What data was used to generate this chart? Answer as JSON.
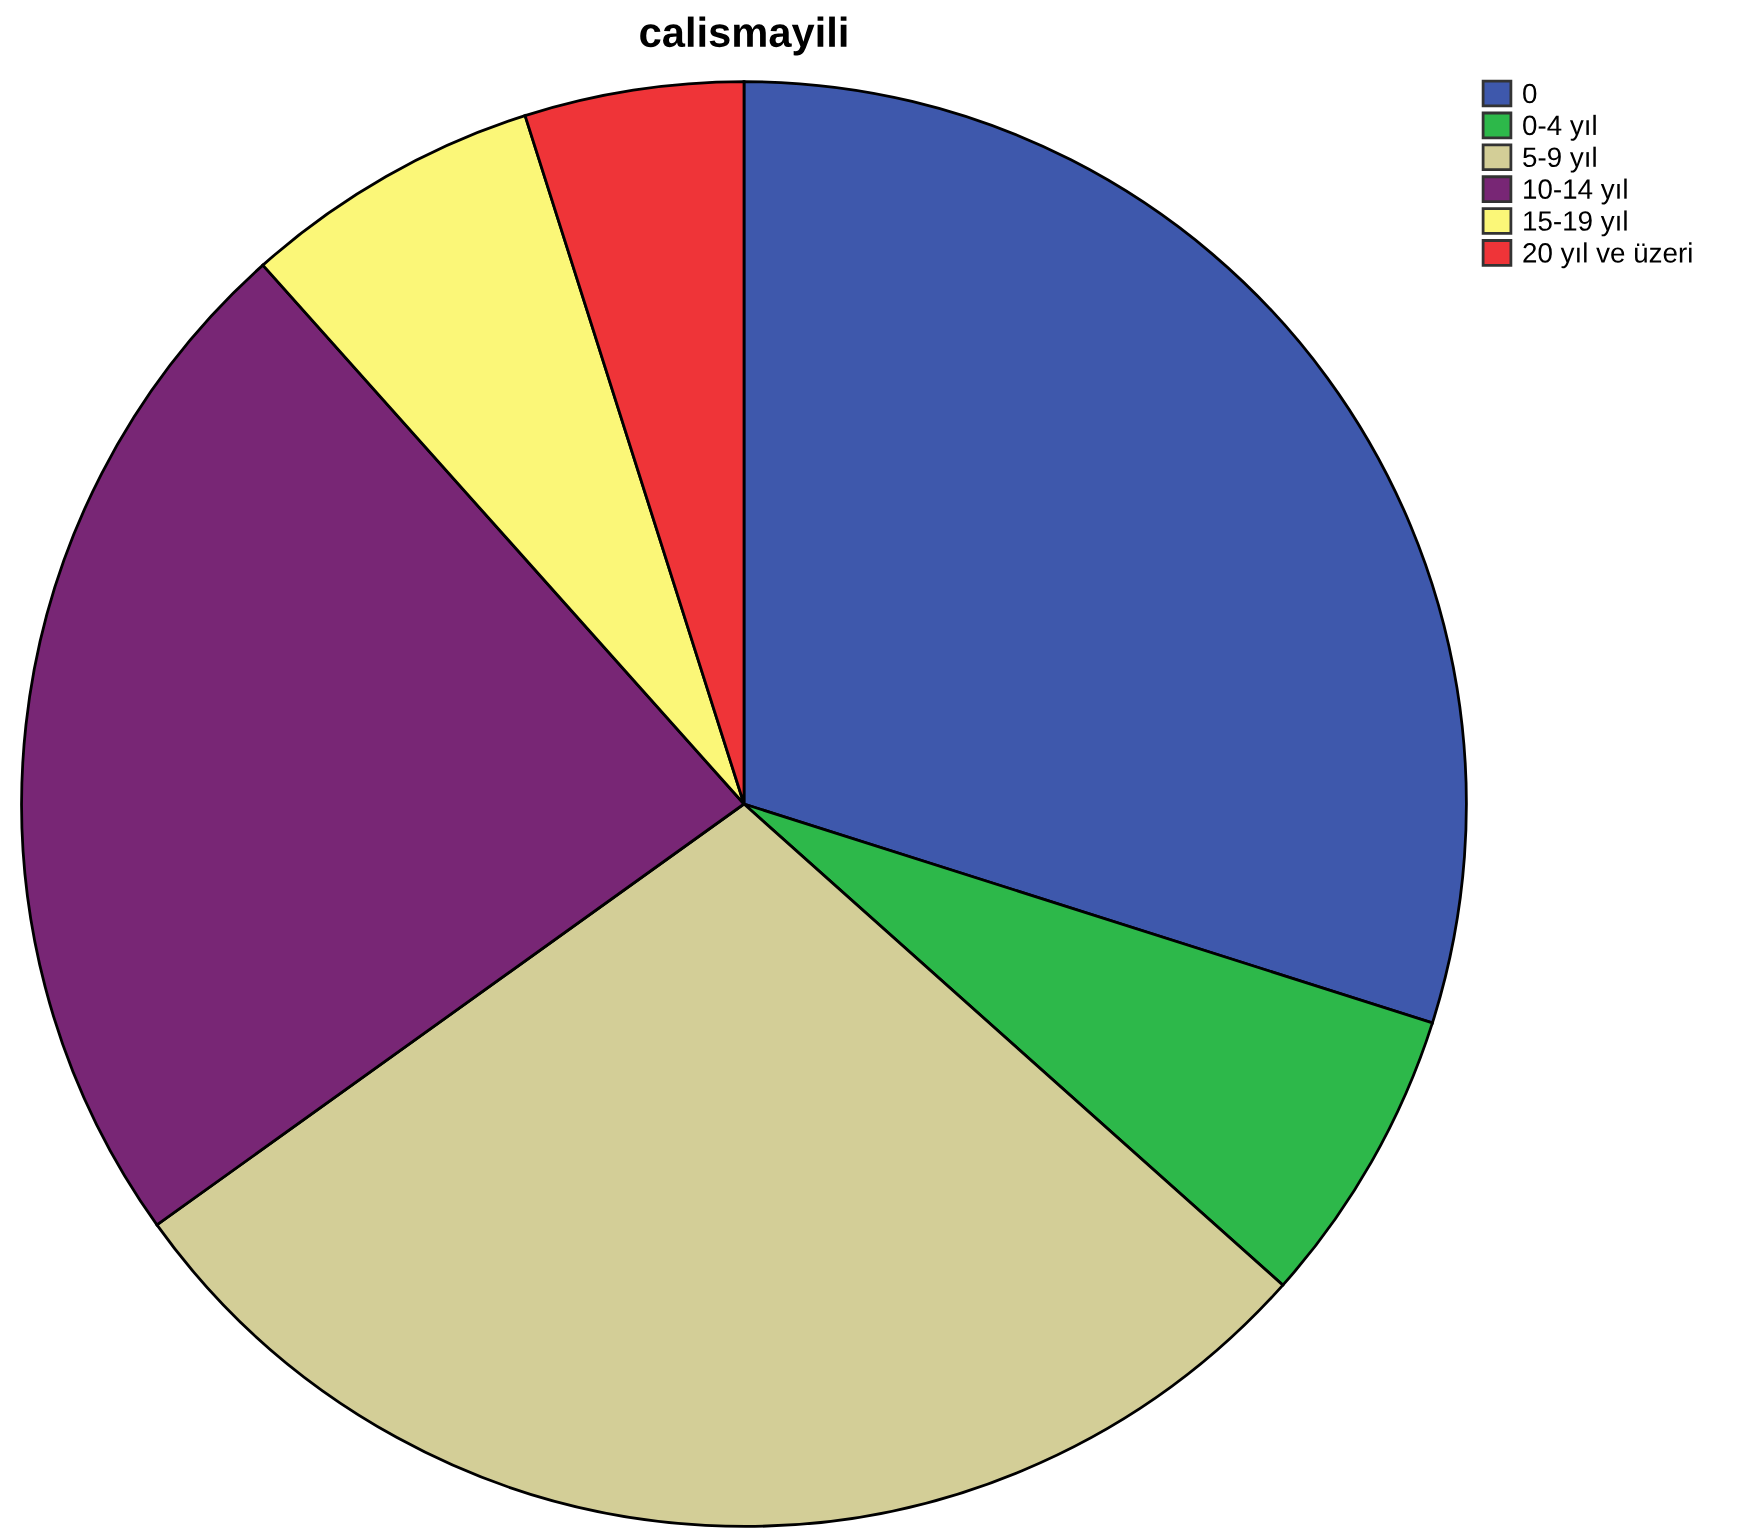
{
  "chart_data": {
    "type": "pie",
    "title": "calismayili",
    "categories": [
      "0",
      "0-4 yıl",
      "5-9 yıl",
      "10-14 yıl",
      "15-19 yıl",
      "20 yıl ve üzeri"
    ],
    "values": [
      29.9,
      6.7,
      28.5,
      23.3,
      6.7,
      4.9
    ],
    "colors": [
      "#3e58ac",
      "#2db84a",
      "#d3ce97",
      "#782675",
      "#fbf778",
      "#ef3438"
    ],
    "legend": "top right"
  }
}
